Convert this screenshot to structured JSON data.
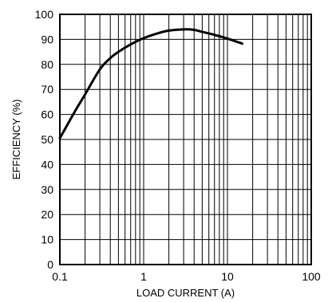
{
  "chart_data": {
    "type": "line",
    "title": "",
    "xlabel": "LOAD CURRENT (A)",
    "ylabel": "EFFICIENCY (%)",
    "x_scale": "log",
    "xlim": [
      0.1,
      100
    ],
    "ylim": [
      0,
      100
    ],
    "x_ticks": [
      0.1,
      1,
      10,
      100
    ],
    "x_tick_labels": [
      "0.1",
      "1",
      "10",
      "100"
    ],
    "y_ticks": [
      0,
      10,
      20,
      30,
      40,
      50,
      60,
      70,
      80,
      90,
      100
    ],
    "y_tick_labels": [
      "0",
      "10",
      "20",
      "30",
      "40",
      "50",
      "60",
      "70",
      "80",
      "90",
      "100"
    ],
    "grid": true,
    "colors": {
      "line": "#000000",
      "grid": "#000000",
      "background": "#ffffff"
    },
    "series": [
      {
        "x": [
          0.1,
          0.15,
          0.2,
          0.3,
          0.4,
          0.5,
          0.7,
          1,
          1.5,
          2,
          3,
          4,
          5,
          7,
          10,
          15
        ],
        "y": [
          50.5,
          61,
          68,
          78,
          82.5,
          85,
          88,
          90.5,
          92.5,
          93.5,
          94,
          93.8,
          93,
          91.8,
          90.3,
          88.3
        ]
      }
    ]
  }
}
